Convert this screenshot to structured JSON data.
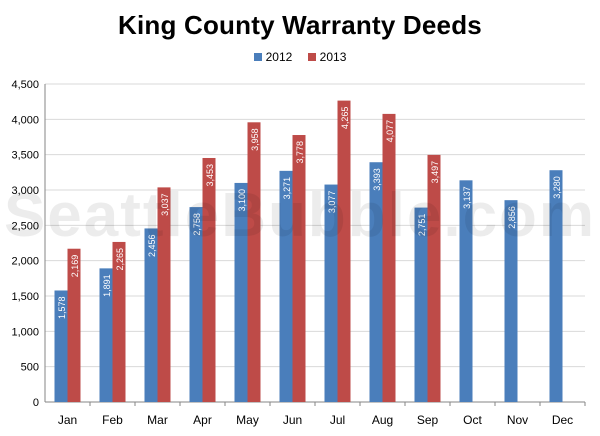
{
  "chart_data": {
    "type": "bar",
    "title": "King County Warranty Deeds",
    "xlabel": "",
    "ylabel": "",
    "categories": [
      "Jan",
      "Feb",
      "Mar",
      "Apr",
      "May",
      "Jun",
      "Jul",
      "Aug",
      "Sep",
      "Oct",
      "Nov",
      "Dec"
    ],
    "series": [
      {
        "name": "2012",
        "color": "#4a7ebb",
        "values": [
          1578,
          1891,
          2456,
          2758,
          3100,
          3271,
          3077,
          3393,
          2751,
          3137,
          2856,
          3280
        ],
        "labels": [
          "1,578",
          "1,891",
          "2,456",
          "2,758",
          "3,100",
          "3,271",
          "3,077",
          "3,393",
          "2,751",
          "3,137",
          "2,856",
          "3,280"
        ]
      },
      {
        "name": "2013",
        "color": "#be4b48",
        "values": [
          2169,
          2265,
          3037,
          3453,
          3958,
          3778,
          4265,
          4077,
          3497,
          null,
          null,
          null
        ],
        "labels": [
          "2,169",
          "2,265",
          "3,037",
          "3,453",
          "3,958",
          "3,778",
          "4,265",
          "4,077",
          "3,497",
          "",
          "",
          ""
        ]
      }
    ],
    "ylim": [
      0,
      4500
    ],
    "yticks": [
      0,
      500,
      1000,
      1500,
      2000,
      2500,
      3000,
      3500,
      4000,
      4500
    ],
    "ytick_labels": [
      "0",
      "500",
      "1,000",
      "1,500",
      "2,000",
      "2,500",
      "3,000",
      "3,500",
      "4,000",
      "4,500"
    ],
    "grid": true,
    "legend_position": "top-center"
  },
  "watermark": "SeattleBubble.com"
}
